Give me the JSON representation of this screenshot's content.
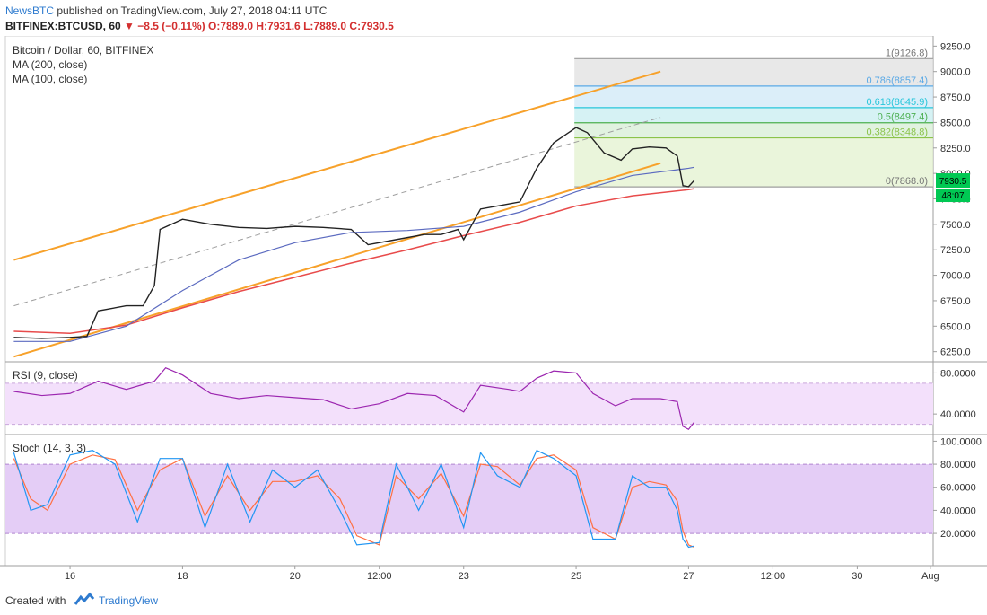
{
  "header": {
    "brand": "NewsBTC",
    "published": "published on TradingView.com, July 27, 2018 04:11 UTC",
    "symbol": "BITFINEX:BTCUSD, 60",
    "change_arrow": "▼",
    "change": "−8.5 (−0.11%)",
    "ohlc": "O:7889.0 H:7931.6 L:7889.0 C:7930.5"
  },
  "footer": {
    "created_with": "Created with",
    "brand": "TradingView"
  },
  "chart_data": {
    "type": "line",
    "title": "Bitcoin / Dollar, 60, BITFINEX",
    "legend": [
      "MA (200, close)",
      "MA (100, close)"
    ],
    "colors": {
      "channel": "#f7a12a",
      "ma200": "#e84b4b",
      "ma100": "#5c6bc0",
      "rsi": "#9c27b0",
      "stoch_k": "#2196f3",
      "stoch_d": "#ff7043",
      "last_price": "#00c853"
    },
    "price_axis": {
      "ticks": [
        "9250.0",
        "9000.0",
        "8750.0",
        "8500.0",
        "8250.0",
        "8000.0",
        "7750.0",
        "7500.0",
        "7250.0",
        "7000.0",
        "6750.0",
        "6500.0",
        "6250.0"
      ],
      "last_price": "7930.5",
      "last_price_value": 7930.5,
      "countdown": "48:07"
    },
    "x_axis": {
      "ticks": [
        "16",
        "18",
        "20",
        "12:00",
        "23",
        "25",
        "27",
        "12:00",
        "30",
        "Aug"
      ]
    },
    "fibonacci": [
      {
        "label": "1(9126.8)",
        "value": 9126.8,
        "color": "#9e9e9e",
        "fill": "#e0e0e0"
      },
      {
        "label": "0.786(8857.4)",
        "value": 8857.4,
        "color": "#5aa9e6",
        "fill": "#cfe8f7"
      },
      {
        "label": "0.618(8645.9)",
        "value": 8645.9,
        "color": "#26c6da",
        "fill": "#c8eef0"
      },
      {
        "label": "0.5(8497.4)",
        "value": 8497.4,
        "color": "#4caf50",
        "fill": "#d7eed6"
      },
      {
        "label": "0.382(8348.8)",
        "value": 8348.8,
        "color": "#8bc34a",
        "fill": "#e3f2cf"
      },
      {
        "label": "0(7868.0)",
        "value": 7868.0,
        "color": "#9e9e9e",
        "fill": "#e8f5d5"
      }
    ],
    "channel": {
      "upper": [
        {
          "x": 15.0,
          "y": 7150
        },
        {
          "x": 26.5,
          "y": 9000
        }
      ],
      "lower": [
        {
          "x": 15.0,
          "y": 6200
        },
        {
          "x": 26.5,
          "y": 8100
        }
      ],
      "mid": [
        {
          "x": 15.0,
          "y": 6700
        },
        {
          "x": 26.5,
          "y": 8550
        }
      ]
    },
    "price_series": [
      {
        "x": 15.0,
        "y": 6390
      },
      {
        "x": 15.5,
        "y": 6380
      },
      {
        "x": 16.0,
        "y": 6390
      },
      {
        "x": 16.3,
        "y": 6400
      },
      {
        "x": 16.5,
        "y": 6650
      },
      {
        "x": 17.0,
        "y": 6700
      },
      {
        "x": 17.3,
        "y": 6700
      },
      {
        "x": 17.5,
        "y": 6900
      },
      {
        "x": 17.6,
        "y": 7450
      },
      {
        "x": 18.0,
        "y": 7550
      },
      {
        "x": 18.5,
        "y": 7500
      },
      {
        "x": 19.0,
        "y": 7470
      },
      {
        "x": 19.5,
        "y": 7460
      },
      {
        "x": 20.0,
        "y": 7480
      },
      {
        "x": 20.5,
        "y": 7470
      },
      {
        "x": 21.0,
        "y": 7450
      },
      {
        "x": 21.3,
        "y": 7300
      },
      {
        "x": 21.8,
        "y": 7350
      },
      {
        "x": 22.3,
        "y": 7400
      },
      {
        "x": 22.6,
        "y": 7400
      },
      {
        "x": 22.9,
        "y": 7450
      },
      {
        "x": 23.0,
        "y": 7350
      },
      {
        "x": 23.3,
        "y": 7650
      },
      {
        "x": 23.8,
        "y": 7700
      },
      {
        "x": 24.0,
        "y": 7720
      },
      {
        "x": 24.3,
        "y": 8050
      },
      {
        "x": 24.6,
        "y": 8300
      },
      {
        "x": 25.0,
        "y": 8450
      },
      {
        "x": 25.2,
        "y": 8400
      },
      {
        "x": 25.5,
        "y": 8200
      },
      {
        "x": 25.8,
        "y": 8130
      },
      {
        "x": 26.0,
        "y": 8240
      },
      {
        "x": 26.3,
        "y": 8260
      },
      {
        "x": 26.6,
        "y": 8250
      },
      {
        "x": 26.8,
        "y": 8170
      },
      {
        "x": 26.9,
        "y": 7880
      },
      {
        "x": 27.0,
        "y": 7870
      },
      {
        "x": 27.1,
        "y": 7930
      }
    ],
    "ma200": [
      {
        "x": 15.0,
        "y": 6450
      },
      {
        "x": 16.0,
        "y": 6430
      },
      {
        "x": 17.0,
        "y": 6510
      },
      {
        "x": 18.0,
        "y": 6680
      },
      {
        "x": 19.0,
        "y": 6840
      },
      {
        "x": 20.0,
        "y": 6980
      },
      {
        "x": 21.0,
        "y": 7120
      },
      {
        "x": 22.0,
        "y": 7250
      },
      {
        "x": 23.0,
        "y": 7390
      },
      {
        "x": 24.0,
        "y": 7520
      },
      {
        "x": 25.0,
        "y": 7680
      },
      {
        "x": 26.0,
        "y": 7780
      },
      {
        "x": 27.0,
        "y": 7840
      },
      {
        "x": 27.1,
        "y": 7850
      }
    ],
    "ma100": [
      {
        "x": 15.0,
        "y": 6350
      },
      {
        "x": 16.0,
        "y": 6350
      },
      {
        "x": 17.0,
        "y": 6500
      },
      {
        "x": 18.0,
        "y": 6850
      },
      {
        "x": 19.0,
        "y": 7150
      },
      {
        "x": 20.0,
        "y": 7320
      },
      {
        "x": 21.0,
        "y": 7420
      },
      {
        "x": 22.0,
        "y": 7440
      },
      {
        "x": 23.0,
        "y": 7480
      },
      {
        "x": 24.0,
        "y": 7620
      },
      {
        "x": 25.0,
        "y": 7820
      },
      {
        "x": 26.0,
        "y": 7980
      },
      {
        "x": 27.0,
        "y": 8050
      },
      {
        "x": 27.1,
        "y": 8060
      }
    ],
    "rsi": {
      "label": "RSI (9, close)",
      "ticks": [
        "80.0000",
        "40.0000"
      ],
      "range": [
        20,
        90
      ],
      "band": [
        30,
        70
      ],
      "series": [
        {
          "x": 15.0,
          "y": 62
        },
        {
          "x": 15.5,
          "y": 58
        },
        {
          "x": 16.0,
          "y": 60
        },
        {
          "x": 16.5,
          "y": 72
        },
        {
          "x": 17.0,
          "y": 64
        },
        {
          "x": 17.5,
          "y": 72
        },
        {
          "x": 17.7,
          "y": 85
        },
        {
          "x": 18.0,
          "y": 78
        },
        {
          "x": 18.5,
          "y": 60
        },
        {
          "x": 19.0,
          "y": 55
        },
        {
          "x": 19.5,
          "y": 58
        },
        {
          "x": 20.0,
          "y": 56
        },
        {
          "x": 20.5,
          "y": 54
        },
        {
          "x": 21.0,
          "y": 45
        },
        {
          "x": 21.5,
          "y": 50
        },
        {
          "x": 22.0,
          "y": 60
        },
        {
          "x": 22.5,
          "y": 58
        },
        {
          "x": 23.0,
          "y": 42
        },
        {
          "x": 23.3,
          "y": 68
        },
        {
          "x": 23.8,
          "y": 64
        },
        {
          "x": 24.0,
          "y": 62
        },
        {
          "x": 24.3,
          "y": 75
        },
        {
          "x": 24.6,
          "y": 82
        },
        {
          "x": 25.0,
          "y": 80
        },
        {
          "x": 25.3,
          "y": 60
        },
        {
          "x": 25.7,
          "y": 48
        },
        {
          "x": 26.0,
          "y": 55
        },
        {
          "x": 26.5,
          "y": 55
        },
        {
          "x": 26.8,
          "y": 52
        },
        {
          "x": 26.9,
          "y": 28
        },
        {
          "x": 27.0,
          "y": 25
        },
        {
          "x": 27.1,
          "y": 32
        }
      ]
    },
    "stoch": {
      "label": "Stoch (14, 3, 3)",
      "ticks": [
        "100.0000",
        "80.0000",
        "60.0000",
        "40.0000",
        "20.0000"
      ],
      "range": [
        0,
        100
      ],
      "band": [
        20,
        80
      ],
      "k": [
        {
          "x": 15.0,
          "y": 90
        },
        {
          "x": 15.3,
          "y": 40
        },
        {
          "x": 15.6,
          "y": 45
        },
        {
          "x": 16.0,
          "y": 88
        },
        {
          "x": 16.4,
          "y": 92
        },
        {
          "x": 16.8,
          "y": 80
        },
        {
          "x": 17.2,
          "y": 30
        },
        {
          "x": 17.6,
          "y": 85
        },
        {
          "x": 18.0,
          "y": 85
        },
        {
          "x": 18.4,
          "y": 25
        },
        {
          "x": 18.8,
          "y": 80
        },
        {
          "x": 19.2,
          "y": 30
        },
        {
          "x": 19.6,
          "y": 75
        },
        {
          "x": 20.0,
          "y": 60
        },
        {
          "x": 20.4,
          "y": 75
        },
        {
          "x": 20.8,
          "y": 40
        },
        {
          "x": 21.1,
          "y": 10
        },
        {
          "x": 21.5,
          "y": 12
        },
        {
          "x": 21.8,
          "y": 80
        },
        {
          "x": 22.2,
          "y": 40
        },
        {
          "x": 22.6,
          "y": 80
        },
        {
          "x": 23.0,
          "y": 25
        },
        {
          "x": 23.3,
          "y": 90
        },
        {
          "x": 23.6,
          "y": 70
        },
        {
          "x": 24.0,
          "y": 60
        },
        {
          "x": 24.3,
          "y": 92
        },
        {
          "x": 24.6,
          "y": 85
        },
        {
          "x": 25.0,
          "y": 70
        },
        {
          "x": 25.3,
          "y": 15
        },
        {
          "x": 25.7,
          "y": 15
        },
        {
          "x": 26.0,
          "y": 70
        },
        {
          "x": 26.3,
          "y": 60
        },
        {
          "x": 26.6,
          "y": 60
        },
        {
          "x": 26.8,
          "y": 40
        },
        {
          "x": 26.9,
          "y": 15
        },
        {
          "x": 27.0,
          "y": 8
        },
        {
          "x": 27.1,
          "y": 9
        }
      ],
      "d": [
        {
          "x": 15.0,
          "y": 85
        },
        {
          "x": 15.3,
          "y": 50
        },
        {
          "x": 15.6,
          "y": 40
        },
        {
          "x": 16.0,
          "y": 80
        },
        {
          "x": 16.4,
          "y": 88
        },
        {
          "x": 16.8,
          "y": 84
        },
        {
          "x": 17.2,
          "y": 40
        },
        {
          "x": 17.6,
          "y": 75
        },
        {
          "x": 18.0,
          "y": 85
        },
        {
          "x": 18.4,
          "y": 35
        },
        {
          "x": 18.8,
          "y": 70
        },
        {
          "x": 19.2,
          "y": 40
        },
        {
          "x": 19.6,
          "y": 65
        },
        {
          "x": 20.0,
          "y": 65
        },
        {
          "x": 20.4,
          "y": 70
        },
        {
          "x": 20.8,
          "y": 50
        },
        {
          "x": 21.1,
          "y": 18
        },
        {
          "x": 21.5,
          "y": 10
        },
        {
          "x": 21.8,
          "y": 70
        },
        {
          "x": 22.2,
          "y": 50
        },
        {
          "x": 22.6,
          "y": 72
        },
        {
          "x": 23.0,
          "y": 35
        },
        {
          "x": 23.3,
          "y": 80
        },
        {
          "x": 23.6,
          "y": 78
        },
        {
          "x": 24.0,
          "y": 62
        },
        {
          "x": 24.3,
          "y": 85
        },
        {
          "x": 24.6,
          "y": 88
        },
        {
          "x": 25.0,
          "y": 75
        },
        {
          "x": 25.3,
          "y": 25
        },
        {
          "x": 25.7,
          "y": 15
        },
        {
          "x": 26.0,
          "y": 60
        },
        {
          "x": 26.3,
          "y": 65
        },
        {
          "x": 26.6,
          "y": 62
        },
        {
          "x": 26.8,
          "y": 48
        },
        {
          "x": 26.9,
          "y": 22
        },
        {
          "x": 27.0,
          "y": 10
        },
        {
          "x": 27.1,
          "y": 8
        }
      ]
    }
  }
}
